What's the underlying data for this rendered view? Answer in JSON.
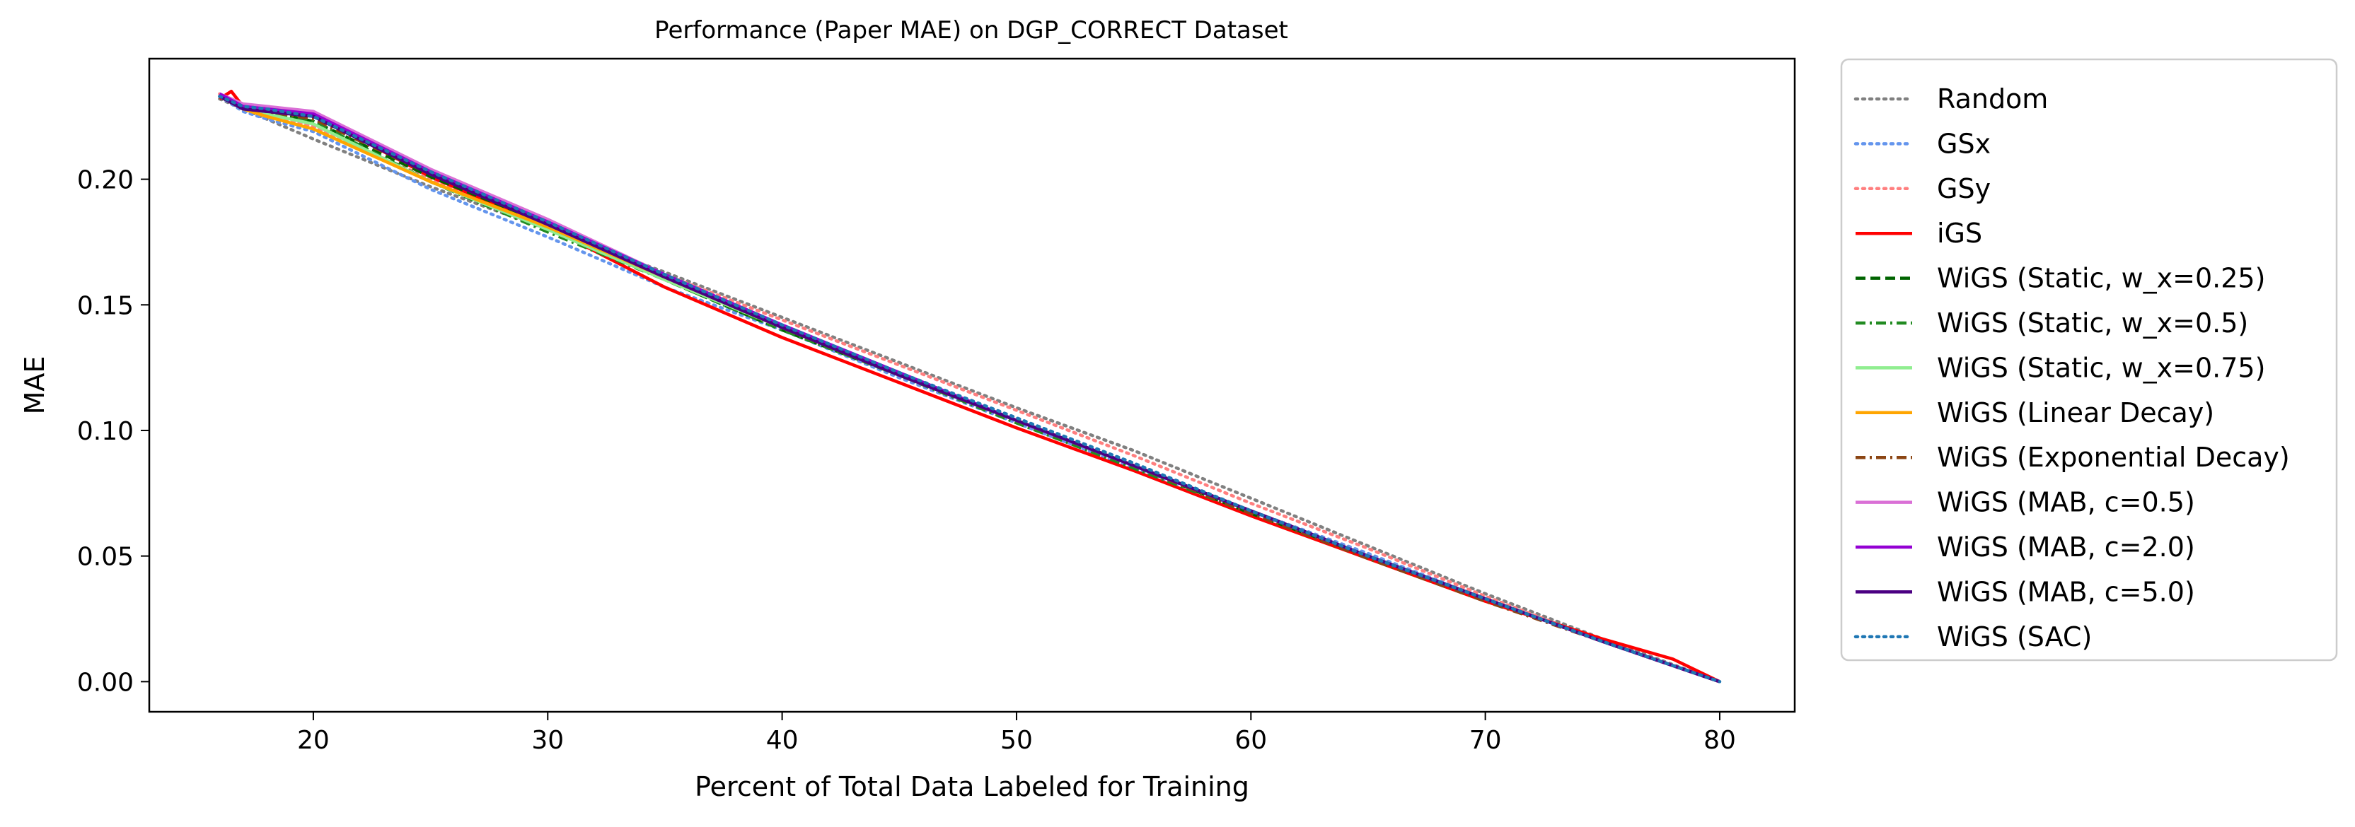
{
  "chart_data": {
    "type": "line",
    "title": "Performance (Paper MAE) on DGP_CORRECT Dataset",
    "xlabel": "Percent of Total Data Labeled for Training",
    "ylabel": "MAE",
    "xlim": [
      13,
      83.2
    ],
    "ylim": [
      -0.012,
      0.248
    ],
    "xticks": [
      20,
      30,
      40,
      50,
      60,
      70,
      80
    ],
    "yticks": [
      0.0,
      0.05,
      0.1,
      0.15,
      0.2
    ],
    "ytick_labels": [
      "0.00",
      "0.05",
      "0.10",
      "0.15",
      "0.20"
    ],
    "grid": false,
    "legend_position": "outside-right",
    "series": [
      {
        "name": "Random",
        "color": "#808080",
        "style": "dotted",
        "x": [
          16,
          17,
          18,
          20,
          25,
          30,
          35,
          40,
          45,
          50,
          55,
          60,
          65,
          70,
          75,
          80
        ],
        "y": [
          0.232,
          0.228,
          0.224,
          0.216,
          0.197,
          0.18,
          0.163,
          0.145,
          0.127,
          0.109,
          0.092,
          0.073,
          0.054,
          0.035,
          0.017,
          0.0
        ]
      },
      {
        "name": "GSx",
        "color": "#6495ED",
        "style": "dotted",
        "x": [
          16,
          17,
          18,
          20,
          25,
          30,
          35,
          40,
          45,
          50,
          55,
          60,
          65,
          70,
          75,
          80
        ],
        "y": [
          0.233,
          0.227,
          0.224,
          0.219,
          0.196,
          0.177,
          0.157,
          0.14,
          0.121,
          0.103,
          0.085,
          0.068,
          0.051,
          0.033,
          0.016,
          0.0
        ]
      },
      {
        "name": "GSy",
        "color": "#FF7F7F",
        "style": "dotted",
        "x": [
          16,
          17,
          18,
          20,
          25,
          30,
          35,
          40,
          45,
          50,
          55,
          60,
          65,
          70,
          75,
          80
        ],
        "y": [
          0.234,
          0.229,
          0.226,
          0.221,
          0.2,
          0.181,
          0.162,
          0.144,
          0.126,
          0.108,
          0.09,
          0.071,
          0.053,
          0.034,
          0.016,
          0.0
        ]
      },
      {
        "name": "iGS",
        "color": "#FF0000",
        "style": "solid",
        "x": [
          16,
          16.5,
          17,
          18,
          20,
          25,
          30,
          35,
          40,
          45,
          50,
          55,
          60,
          65,
          70,
          75,
          78,
          80
        ],
        "y": [
          0.232,
          0.235,
          0.229,
          0.228,
          0.226,
          0.201,
          0.181,
          0.157,
          0.137,
          0.119,
          0.101,
          0.084,
          0.066,
          0.049,
          0.032,
          0.017,
          0.009,
          0.0
        ]
      },
      {
        "name": "WiGS (Static, w_x=0.25)",
        "color": "#006400",
        "style": "dashed",
        "x": [
          16,
          17,
          18,
          20,
          25,
          30,
          35,
          40,
          45,
          50,
          55,
          60,
          65,
          70,
          75,
          80
        ],
        "y": [
          0.233,
          0.228,
          0.227,
          0.223,
          0.201,
          0.182,
          0.16,
          0.14,
          0.122,
          0.104,
          0.086,
          0.067,
          0.05,
          0.033,
          0.016,
          0.0
        ]
      },
      {
        "name": "WiGS (Static, w_x=0.5)",
        "color": "#228B22",
        "style": "dashdot",
        "x": [
          16,
          17,
          18,
          20,
          25,
          30,
          35,
          40,
          45,
          50,
          55,
          60,
          65,
          70,
          75,
          80
        ],
        "y": [
          0.233,
          0.228,
          0.227,
          0.223,
          0.199,
          0.179,
          0.16,
          0.14,
          0.122,
          0.103,
          0.085,
          0.067,
          0.05,
          0.033,
          0.016,
          0.0
        ]
      },
      {
        "name": "WiGS (Static, w_x=0.75)",
        "color": "#90EE90",
        "style": "solid",
        "x": [
          16,
          17,
          18,
          20,
          25,
          30,
          35,
          40,
          45,
          50,
          55,
          60,
          65,
          70,
          75,
          80
        ],
        "y": [
          0.233,
          0.228,
          0.226,
          0.222,
          0.199,
          0.18,
          0.16,
          0.141,
          0.123,
          0.104,
          0.086,
          0.068,
          0.05,
          0.033,
          0.016,
          0.0
        ]
      },
      {
        "name": "WiGS (Linear Decay)",
        "color": "#FFA500",
        "style": "solid",
        "x": [
          16,
          17,
          18,
          20,
          25,
          30,
          35,
          40,
          45,
          50,
          55,
          60,
          65,
          70,
          75,
          80
        ],
        "y": [
          0.233,
          0.228,
          0.225,
          0.22,
          0.199,
          0.181,
          0.161,
          0.141,
          0.122,
          0.104,
          0.086,
          0.068,
          0.05,
          0.033,
          0.016,
          0.0
        ]
      },
      {
        "name": "WiGS (Exponential Decay)",
        "color": "#8B4513",
        "style": "dashdot",
        "x": [
          16,
          17,
          18,
          20,
          25,
          30,
          35,
          40,
          45,
          50,
          55,
          60,
          65,
          70,
          75,
          80
        ],
        "y": [
          0.233,
          0.228,
          0.227,
          0.224,
          0.202,
          0.182,
          0.161,
          0.141,
          0.122,
          0.104,
          0.086,
          0.067,
          0.049,
          0.032,
          0.016,
          0.0
        ]
      },
      {
        "name": "WiGS (MAB, c=0.5)",
        "color": "#DA70D6",
        "style": "solid",
        "x": [
          16,
          17,
          18,
          20,
          25,
          30,
          35,
          40,
          45,
          50,
          55,
          60,
          65,
          70,
          75,
          80
        ],
        "y": [
          0.234,
          0.23,
          0.229,
          0.227,
          0.204,
          0.184,
          0.162,
          0.142,
          0.123,
          0.104,
          0.086,
          0.068,
          0.05,
          0.033,
          0.016,
          0.0
        ]
      },
      {
        "name": "WiGS (MAB, c=2.0)",
        "color": "#9400D3",
        "style": "solid",
        "x": [
          16,
          17,
          18,
          20,
          25,
          30,
          35,
          40,
          45,
          50,
          55,
          60,
          65,
          70,
          75,
          80
        ],
        "y": [
          0.234,
          0.229,
          0.228,
          0.226,
          0.203,
          0.183,
          0.162,
          0.142,
          0.123,
          0.104,
          0.086,
          0.068,
          0.05,
          0.033,
          0.016,
          0.0
        ]
      },
      {
        "name": "WiGS (MAB, c=5.0)",
        "color": "#4B0082",
        "style": "solid",
        "x": [
          16,
          17,
          18,
          20,
          25,
          30,
          35,
          40,
          45,
          50,
          55,
          60,
          65,
          70,
          75,
          80
        ],
        "y": [
          0.233,
          0.228,
          0.227,
          0.225,
          0.202,
          0.182,
          0.161,
          0.141,
          0.122,
          0.104,
          0.086,
          0.068,
          0.05,
          0.033,
          0.016,
          0.0
        ]
      },
      {
        "name": "WiGS (SAC)",
        "color": "#1F77B4",
        "style": "dotted",
        "x": [
          16,
          17,
          18,
          20,
          25,
          30,
          35,
          40,
          45,
          50,
          55,
          60,
          65,
          70,
          75,
          80
        ],
        "y": [
          0.233,
          0.229,
          0.228,
          0.225,
          0.203,
          0.183,
          0.162,
          0.142,
          0.123,
          0.105,
          0.087,
          0.068,
          0.05,
          0.033,
          0.016,
          0.0
        ]
      }
    ]
  }
}
